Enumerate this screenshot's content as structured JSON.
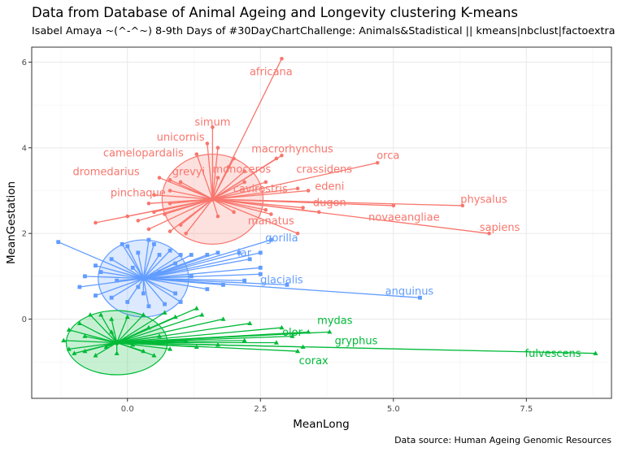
{
  "chart_data": {
    "type": "scatter",
    "title": "Data from Database of Animal Ageing and Longevity clustering K-means",
    "subtitle": "Isabel Amaya ~(^-^~) 8-9th Days of #30DayChartChallenge: Animals&Stadistical || kmeans|nbclust|factoextra",
    "caption": "Data source: Human Ageing Genomic Resources",
    "xlabel": "MeanLong",
    "ylabel": "MeanGestation",
    "xlim": [
      -1.8,
      9.1
    ],
    "ylim": [
      -1.85,
      6.35
    ],
    "xticks": [
      0.0,
      2.5,
      5.0,
      7.5
    ],
    "xtick_labels": [
      "0.0",
      "2.5",
      "5.0",
      "7.5"
    ],
    "yticks": [
      0,
      2,
      4,
      6
    ],
    "ytick_labels": [
      "0",
      "2",
      "4",
      "6"
    ],
    "grid": true,
    "legend": "none",
    "clusters": [
      {
        "id": 1,
        "color": "#F8766D",
        "marker": "circle",
        "center": [
          1.6,
          2.8
        ],
        "ellipse": {
          "rx": 0.95,
          "ry": 1.05
        },
        "points": [
          [
            2.9,
            6.08
          ],
          [
            1.6,
            4.48
          ],
          [
            1.5,
            4.1
          ],
          [
            1.7,
            4.0
          ],
          [
            1.3,
            3.85
          ],
          [
            2.9,
            3.82
          ],
          [
            2.8,
            3.75
          ],
          [
            4.7,
            3.65
          ],
          [
            2.0,
            3.75
          ],
          [
            0.6,
            3.3
          ],
          [
            0.8,
            3.25
          ],
          [
            1.0,
            3.2
          ],
          [
            1.7,
            3.3
          ],
          [
            1.9,
            3.55
          ],
          [
            2.2,
            3.45
          ],
          [
            2.2,
            3.2
          ],
          [
            2.6,
            3.2
          ],
          [
            3.2,
            3.05
          ],
          [
            3.4,
            3.0
          ],
          [
            0.8,
            3.0
          ],
          [
            0.5,
            2.9
          ],
          [
            0.4,
            2.7
          ],
          [
            -0.6,
            2.25
          ],
          [
            0.0,
            2.4
          ],
          [
            0.2,
            2.3
          ],
          [
            0.5,
            2.5
          ],
          [
            0.7,
            2.45
          ],
          [
            0.8,
            2.7
          ],
          [
            0.4,
            2.1
          ],
          [
            0.8,
            2.05
          ],
          [
            1.0,
            2.2
          ],
          [
            1.1,
            2.0
          ],
          [
            2.7,
            2.45
          ],
          [
            2.0,
            2.5
          ],
          [
            1.7,
            2.4
          ],
          [
            2.6,
            2.55
          ],
          [
            3.3,
            2.6
          ],
          [
            3.6,
            2.5
          ],
          [
            3.2,
            2.0
          ],
          [
            5.0,
            2.65
          ],
          [
            6.3,
            2.65
          ],
          [
            6.8,
            2.0
          ]
        ]
      },
      {
        "id": 2,
        "color": "#619CFF",
        "marker": "square",
        "center": [
          0.3,
          0.95
        ],
        "ellipse": {
          "rx": 0.85,
          "ry": 0.9
        },
        "points": [
          [
            -1.3,
            1.8
          ],
          [
            -0.1,
            1.75
          ],
          [
            0.4,
            1.85
          ],
          [
            0.5,
            1.75
          ],
          [
            0.0,
            1.7
          ],
          [
            0.8,
            1.6
          ],
          [
            1.2,
            1.5
          ],
          [
            1.5,
            1.5
          ],
          [
            1.7,
            1.55
          ],
          [
            2.1,
            1.55
          ],
          [
            2.5,
            1.55
          ],
          [
            2.7,
            1.85
          ],
          [
            2.3,
            1.4
          ],
          [
            2.5,
            1.2
          ],
          [
            1.0,
            1.5
          ],
          [
            0.6,
            1.5
          ],
          [
            0.2,
            1.55
          ],
          [
            -0.3,
            1.4
          ],
          [
            -0.6,
            1.25
          ],
          [
            -0.8,
            1.0
          ],
          [
            -0.9,
            0.75
          ],
          [
            -0.6,
            0.55
          ],
          [
            -0.3,
            0.5
          ],
          [
            0.0,
            0.4
          ],
          [
            0.4,
            0.3
          ],
          [
            0.7,
            0.35
          ],
          [
            1.0,
            0.4
          ],
          [
            0.9,
            0.6
          ],
          [
            1.5,
            0.7
          ],
          [
            1.8,
            0.8
          ],
          [
            2.2,
            0.9
          ],
          [
            2.5,
            1.05
          ],
          [
            3.0,
            0.8
          ],
          [
            5.5,
            0.5
          ],
          [
            0.3,
            0.6
          ],
          [
            -0.2,
            0.9
          ],
          [
            0.1,
            1.2
          ],
          [
            0.6,
            1.1
          ],
          [
            1.2,
            1.0
          ],
          [
            -0.5,
            1.1
          ],
          [
            0.2,
            0.75
          ],
          [
            0.9,
            1.3
          ]
        ]
      },
      {
        "id": 3,
        "color": "#00BA38",
        "marker": "triangle",
        "center": [
          -0.2,
          -0.55
        ],
        "ellipse": {
          "rx": 0.95,
          "ry": 0.75
        },
        "points": [
          [
            -1.2,
            -0.5
          ],
          [
            -1.1,
            -0.7
          ],
          [
            -1.1,
            -0.25
          ],
          [
            -0.9,
            -0.1
          ],
          [
            -0.7,
            0.1
          ],
          [
            -0.5,
            0.1
          ],
          [
            -0.3,
            0.0
          ],
          [
            0.0,
            0.05
          ],
          [
            0.3,
            0.1
          ],
          [
            0.7,
            0.15
          ],
          [
            0.9,
            0.05
          ],
          [
            1.3,
            0.25
          ],
          [
            1.4,
            0.1
          ],
          [
            1.8,
            0.0
          ],
          [
            2.3,
            -0.1
          ],
          [
            2.9,
            -0.2
          ],
          [
            3.4,
            -0.3
          ],
          [
            3.8,
            -0.3
          ],
          [
            3.1,
            -0.4
          ],
          [
            2.8,
            -0.55
          ],
          [
            3.3,
            -0.65
          ],
          [
            3.2,
            -0.75
          ],
          [
            8.8,
            -0.8
          ],
          [
            2.2,
            -0.5
          ],
          [
            1.7,
            -0.6
          ],
          [
            1.1,
            -0.5
          ],
          [
            0.6,
            -0.4
          ],
          [
            0.1,
            -0.6
          ],
          [
            -0.4,
            -0.65
          ],
          [
            -0.8,
            -0.75
          ],
          [
            -1.0,
            -0.8
          ],
          [
            -0.6,
            -0.85
          ],
          [
            -0.2,
            -0.8
          ],
          [
            0.3,
            -0.75
          ],
          [
            0.8,
            -0.7
          ],
          [
            1.3,
            -0.65
          ],
          [
            -0.3,
            -0.3
          ],
          [
            0.4,
            -0.2
          ],
          [
            -0.8,
            -0.4
          ],
          [
            0.5,
            -0.85
          ]
        ]
      }
    ],
    "labels": [
      {
        "text": "africana",
        "x": 2.7,
        "y": 5.78,
        "cluster": 1
      },
      {
        "text": "simum",
        "x": 1.6,
        "y": 4.6,
        "cluster": 1
      },
      {
        "text": "unicornis",
        "x": 1.0,
        "y": 4.25,
        "cluster": 1
      },
      {
        "text": "macrorhynchus",
        "x": 3.1,
        "y": 3.98,
        "cluster": 1
      },
      {
        "text": "camelopardalis",
        "x": 0.3,
        "y": 3.88,
        "cluster": 1
      },
      {
        "text": "orca",
        "x": 4.9,
        "y": 3.83,
        "cluster": 1
      },
      {
        "text": "dromedarius",
        "x": -0.4,
        "y": 3.45,
        "cluster": 1
      },
      {
        "text": "grevyi",
        "x": 1.15,
        "y": 3.45,
        "cluster": 1
      },
      {
        "text": "monoceros",
        "x": 2.15,
        "y": 3.5,
        "cluster": 1
      },
      {
        "text": "crassidens",
        "x": 3.7,
        "y": 3.5,
        "cluster": 1
      },
      {
        "text": "cavirostris",
        "x": 2.5,
        "y": 3.05,
        "cluster": 1
      },
      {
        "text": "edeni",
        "x": 3.8,
        "y": 3.1,
        "cluster": 1
      },
      {
        "text": "pinchaque",
        "x": 0.2,
        "y": 2.95,
        "cluster": 1
      },
      {
        "text": "dugon",
        "x": 3.8,
        "y": 2.72,
        "cluster": 1
      },
      {
        "text": "physalus",
        "x": 6.7,
        "y": 2.8,
        "cluster": 1
      },
      {
        "text": "manatus",
        "x": 2.7,
        "y": 2.3,
        "cluster": 1
      },
      {
        "text": "novaeangliae",
        "x": 5.2,
        "y": 2.38,
        "cluster": 1
      },
      {
        "text": "sapiens",
        "x": 7.0,
        "y": 2.15,
        "cluster": 1
      },
      {
        "text": "gorilla",
        "x": 2.9,
        "y": 1.9,
        "cluster": 2
      },
      {
        "text": "lar",
        "x": 2.2,
        "y": 1.55,
        "cluster": 2
      },
      {
        "text": "glacialis",
        "x": 2.9,
        "y": 0.92,
        "cluster": 2
      },
      {
        "text": "anguinus",
        "x": 5.3,
        "y": 0.66,
        "cluster": 2
      },
      {
        "text": "mydas",
        "x": 3.9,
        "y": -0.03,
        "cluster": 3
      },
      {
        "text": "olor",
        "x": 3.1,
        "y": -0.3,
        "cluster": 3
      },
      {
        "text": "gryphus",
        "x": 4.3,
        "y": -0.5,
        "cluster": 3
      },
      {
        "text": "fulvescens",
        "x": 8.0,
        "y": -0.8,
        "cluster": 3
      },
      {
        "text": "corax",
        "x": 3.5,
        "y": -0.97,
        "cluster": 3
      }
    ]
  }
}
